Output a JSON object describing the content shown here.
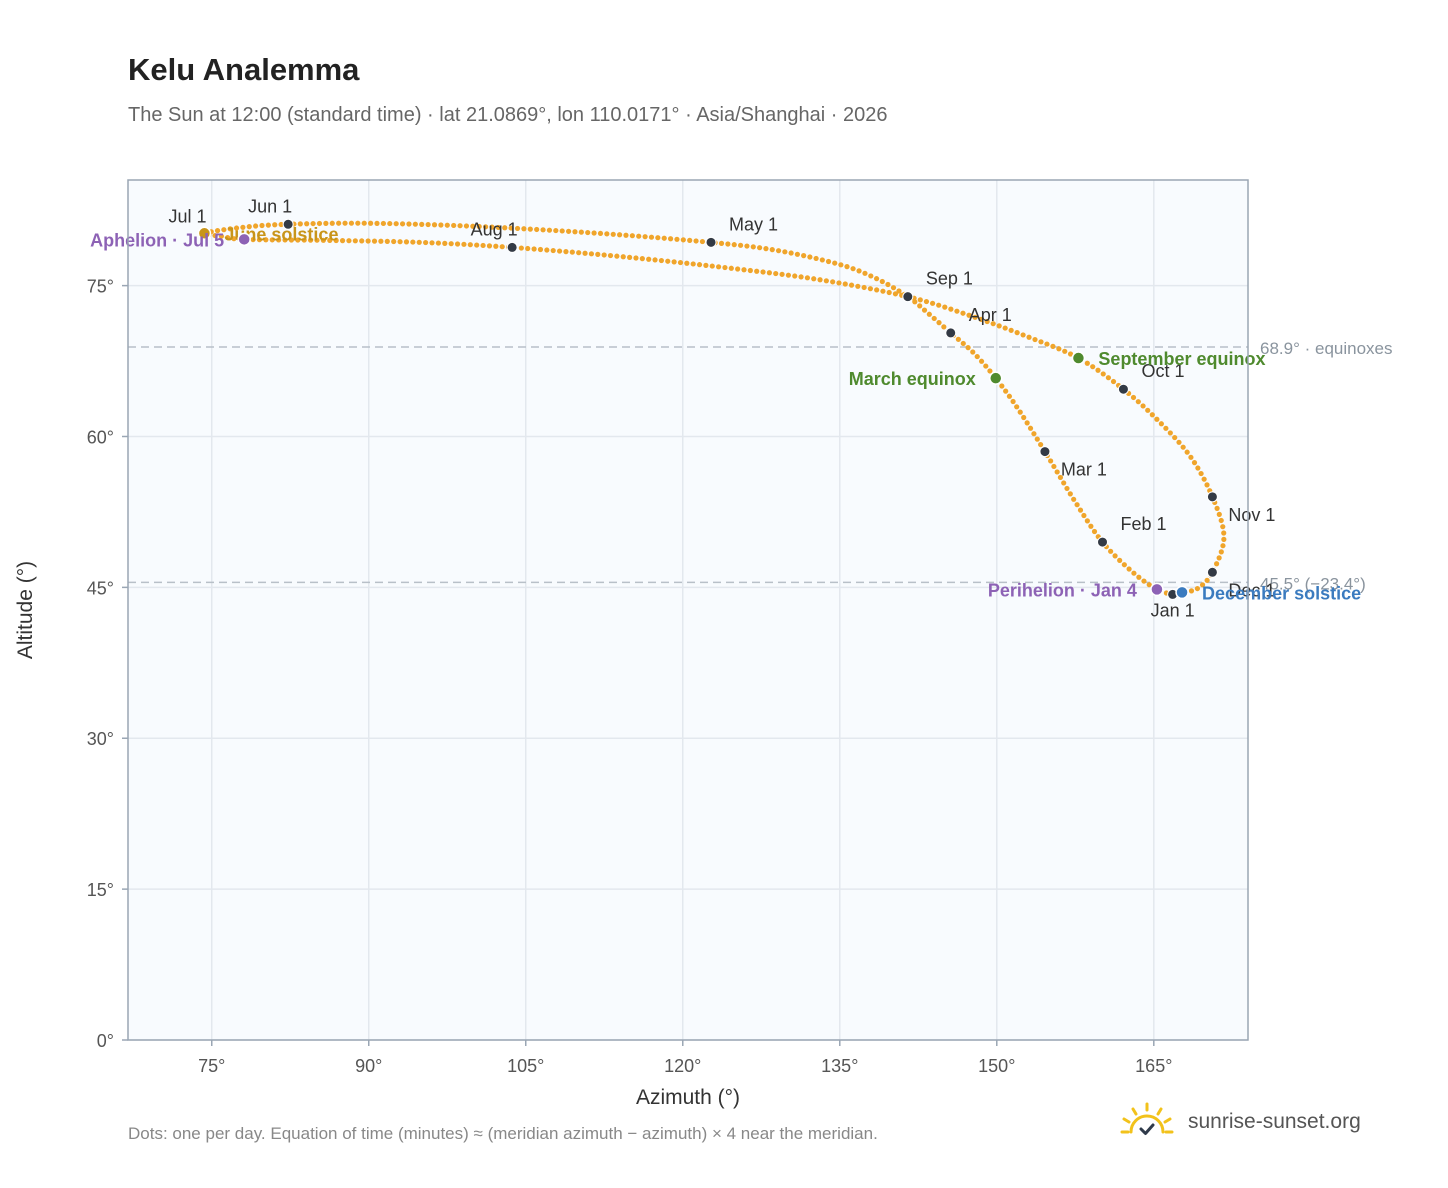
{
  "header": {
    "title": "Kelu Analemma",
    "subtitle": "The Sun at 12:00 (standard time) · lat 21.0869°, lon 110.0171° · Asia/Shanghai · 2026"
  },
  "footer": {
    "note": "Dots: one per day. Equation of time (minutes) ≈ (meridian azimuth − azimuth) × 4 near the meridian.",
    "brand": "sunrise-sunset.org",
    "brand_icon": "sun-logo-icon"
  },
  "colors": {
    "path": "#f0a52b",
    "month_marker": "#333a45",
    "equinox": "#4f8a2e",
    "solstice_june": "#c8951a",
    "solstice_december": "#3b7bbf",
    "apsis": "#8d62b5",
    "reference_line": "#b8c0c8",
    "plot_bg": "#f8fbfe",
    "grid": "#e3e8ee",
    "frame": "#9aa6b4"
  },
  "chart_data": {
    "type": "scatter",
    "xlabel": "Azimuth (°)",
    "ylabel": "Altitude (°)",
    "xlim": [
      67,
      174
    ],
    "ylim": [
      0,
      85.5
    ],
    "xticks": [
      75,
      90,
      105,
      120,
      135,
      150,
      165
    ],
    "xtick_labels": [
      "75°",
      "90°",
      "105°",
      "120°",
      "135°",
      "150°",
      "165°"
    ],
    "yticks": [
      0,
      15,
      30,
      45,
      60,
      75
    ],
    "ytick_labels": [
      "0°",
      "15°",
      "30°",
      "45°",
      "60°",
      "75°"
    ],
    "grid": true,
    "month_markers": [
      {
        "label": "Jan 1",
        "x": 166.8,
        "y": 44.3,
        "anchor": "below"
      },
      {
        "label": "Feb 1",
        "x": 160.1,
        "y": 49.5,
        "anchor": "above-right"
      },
      {
        "label": "Mar 1",
        "x": 154.6,
        "y": 58.5,
        "anchor": "below-right"
      },
      {
        "label": "Apr 1",
        "x": 145.6,
        "y": 70.3,
        "anchor": "above-right"
      },
      {
        "label": "May 1",
        "x": 122.7,
        "y": 79.3,
        "anchor": "above-right"
      },
      {
        "label": "Jun 1",
        "x": 82.3,
        "y": 81.1,
        "anchor": "above-left"
      },
      {
        "label": "Jul 1",
        "x": 74.4,
        "y": 80.1,
        "anchor": "above-left"
      },
      {
        "label": "Aug 1",
        "x": 103.7,
        "y": 78.8,
        "anchor": "above-left"
      },
      {
        "label": "Sep 1",
        "x": 141.5,
        "y": 73.9,
        "anchor": "above-right"
      },
      {
        "label": "Oct 1",
        "x": 162.1,
        "y": 64.7,
        "anchor": "above-right"
      },
      {
        "label": "Nov 1",
        "x": 170.6,
        "y": 54.0,
        "anchor": "below-right"
      },
      {
        "label": "Dec 1",
        "x": 170.6,
        "y": 46.5,
        "anchor": "below-right"
      }
    ],
    "events": [
      {
        "label": "March equinox",
        "x": 149.9,
        "y": 65.8,
        "kind": "equinox",
        "side": "left"
      },
      {
        "label": "September equinox",
        "x": 157.8,
        "y": 67.8,
        "kind": "equinox",
        "side": "right"
      },
      {
        "label": "June solstice",
        "x": 74.3,
        "y": 80.2,
        "kind": "solstice_june",
        "side": "right"
      },
      {
        "label": "December solstice",
        "x": 167.7,
        "y": 44.5,
        "kind": "solstice_december",
        "side": "right"
      },
      {
        "label": "Aphelion · Jul 5",
        "x": 78.1,
        "y": 79.6,
        "kind": "apsis",
        "side": "left"
      },
      {
        "label": "Perihelion · Jan 4",
        "x": 165.3,
        "y": 44.8,
        "kind": "apsis",
        "side": "left"
      }
    ],
    "reference_lines": [
      {
        "y": 68.9,
        "label": "68.9° · equinoxes"
      },
      {
        "y": 45.5,
        "label": "45.5° (−23.4°)"
      }
    ],
    "path_keypoints": [
      [
        166.8,
        44.3
      ],
      [
        165.3,
        44.8
      ],
      [
        163.0,
        46.5
      ],
      [
        160.1,
        49.5
      ],
      [
        157.5,
        53.5
      ],
      [
        154.6,
        58.5
      ],
      [
        152.0,
        62.8
      ],
      [
        149.9,
        65.8
      ],
      [
        147.8,
        68.3
      ],
      [
        145.6,
        70.3
      ],
      [
        143.5,
        72.2
      ],
      [
        141.5,
        73.9
      ],
      [
        138.5,
        75.7
      ],
      [
        135.0,
        77.1
      ],
      [
        129.0,
        78.5
      ],
      [
        122.7,
        79.3
      ],
      [
        112.0,
        80.2
      ],
      [
        100.0,
        80.9
      ],
      [
        90.0,
        81.2
      ],
      [
        82.3,
        81.1
      ],
      [
        78.0,
        80.8
      ],
      [
        74.3,
        80.2
      ],
      [
        76.0,
        79.9
      ],
      [
        78.1,
        79.6
      ],
      [
        86.0,
        79.5
      ],
      [
        95.0,
        79.3
      ],
      [
        103.7,
        78.8
      ],
      [
        114.0,
        77.9
      ],
      [
        124.0,
        76.8
      ],
      [
        133.0,
        75.6
      ],
      [
        141.5,
        73.9
      ],
      [
        147.5,
        72.0
      ],
      [
        153.0,
        69.9
      ],
      [
        157.8,
        67.8
      ],
      [
        162.1,
        64.7
      ],
      [
        165.5,
        61.5
      ],
      [
        168.5,
        58.0
      ],
      [
        170.6,
        54.0
      ],
      [
        171.7,
        50.0
      ],
      [
        170.6,
        46.5
      ],
      [
        169.2,
        44.9
      ],
      [
        167.7,
        44.5
      ],
      [
        166.8,
        44.3
      ]
    ]
  }
}
